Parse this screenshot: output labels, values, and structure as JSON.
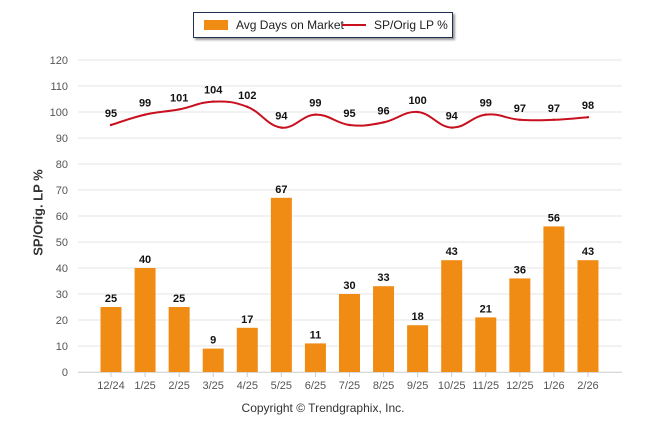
{
  "chart_data": {
    "type": "bar",
    "title": "",
    "xlabel": "",
    "ylabel": "SP/Orig. LP %",
    "ylim": [
      0,
      120
    ],
    "yticks": [
      0,
      10,
      20,
      30,
      40,
      50,
      60,
      70,
      80,
      90,
      100,
      110,
      120
    ],
    "grid": true,
    "legend_position": "top",
    "categories": [
      "12/24",
      "1/25",
      "2/25",
      "3/25",
      "4/25",
      "5/25",
      "6/25",
      "7/25",
      "8/25",
      "9/25",
      "10/25",
      "11/25",
      "12/25",
      "1/26",
      "2/26"
    ],
    "series": [
      {
        "name": "Avg Days on Market",
        "type": "bar",
        "color": "#f08c13",
        "values": [
          25,
          40,
          25,
          9,
          17,
          67,
          11,
          30,
          33,
          18,
          43,
          21,
          36,
          56,
          43
        ]
      },
      {
        "name": "SP/Orig LP %",
        "type": "line",
        "color": "#c8101e",
        "values": [
          95,
          99,
          101,
          104,
          102,
          94,
          99,
          95,
          96,
          100,
          94,
          99,
          97,
          97,
          98
        ]
      }
    ]
  },
  "footer": {
    "copyright": "Copyright © Trendgraphix, Inc."
  }
}
